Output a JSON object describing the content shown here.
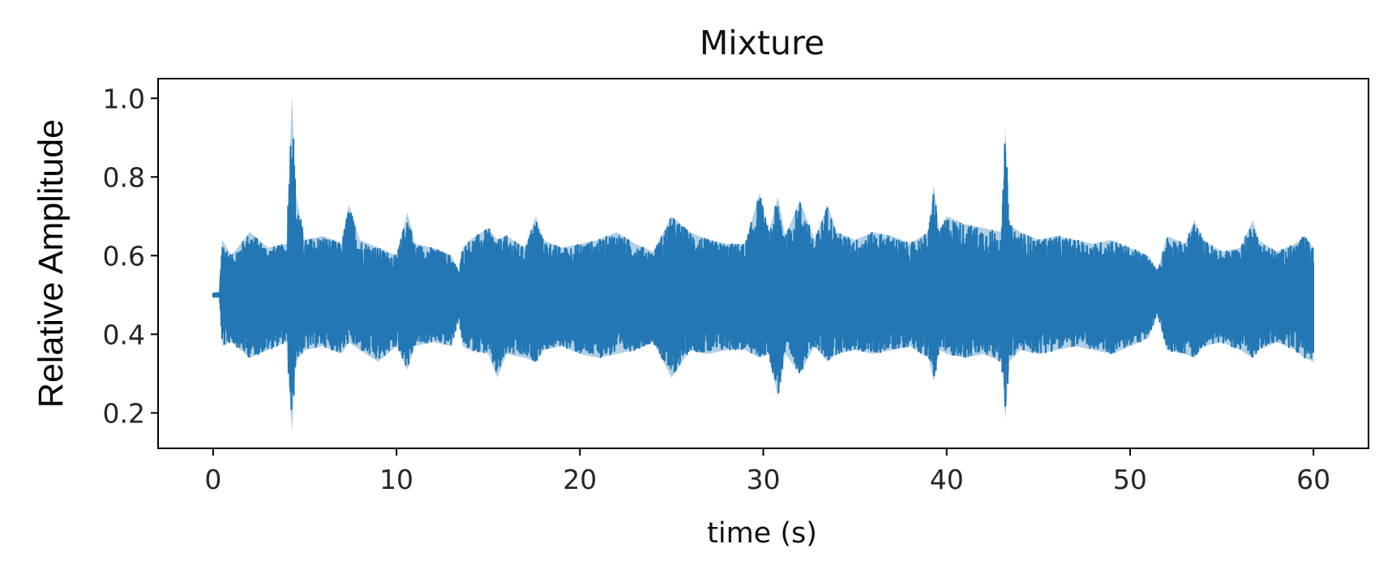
{
  "chart_data": {
    "type": "line",
    "title": "Mixture",
    "xlabel": "time (s)",
    "ylabel": "Relative Amplitude",
    "xlim": [
      -3,
      63
    ],
    "ylim": [
      0.11,
      1.05
    ],
    "x_ticks": [
      0,
      10,
      20,
      30,
      40,
      50,
      60
    ],
    "x_tick_labels": [
      "0",
      "10",
      "20",
      "30",
      "40",
      "50",
      "60"
    ],
    "y_ticks": [
      0.2,
      0.4,
      0.6,
      0.8,
      1.0
    ],
    "y_tick_labels": [
      "0.2",
      "0.4",
      "0.6",
      "0.8",
      "1.0"
    ],
    "grid": false,
    "series": [
      {
        "color": "#2277b4",
        "time_range": [
          0,
          60
        ],
        "baseline": 0.5,
        "envelope": {
          "x": [
            0.0,
            0.35,
            0.5,
            1,
            2,
            3,
            4,
            4.3,
            4.5,
            5,
            6,
            7,
            7.4,
            8,
            9,
            10,
            10.6,
            11,
            12,
            13,
            13.4,
            13.6,
            14,
            15,
            15.5,
            16,
            17,
            17.6,
            18,
            19,
            20,
            21,
            22,
            23,
            24,
            25,
            26,
            27,
            28,
            29,
            29.8,
            30.3,
            30.8,
            31.2,
            32,
            32.8,
            33.5,
            34,
            35,
            36,
            37,
            38,
            39,
            39.3,
            39.6,
            40,
            41,
            42,
            43,
            43.2,
            43.4,
            44,
            45,
            46,
            47,
            48,
            49,
            50,
            51,
            51.5,
            52,
            53,
            53.5,
            54,
            55,
            56,
            56.7,
            57,
            58,
            59,
            59.5,
            60
          ],
          "upper": [
            0.505,
            0.505,
            0.64,
            0.6,
            0.66,
            0.62,
            0.63,
            1.01,
            0.76,
            0.64,
            0.65,
            0.63,
            0.73,
            0.64,
            0.62,
            0.6,
            0.71,
            0.63,
            0.62,
            0.6,
            0.56,
            0.62,
            0.64,
            0.67,
            0.64,
            0.65,
            0.62,
            0.7,
            0.64,
            0.62,
            0.63,
            0.64,
            0.66,
            0.63,
            0.61,
            0.7,
            0.66,
            0.64,
            0.63,
            0.63,
            0.76,
            0.66,
            0.75,
            0.65,
            0.74,
            0.64,
            0.73,
            0.66,
            0.64,
            0.66,
            0.65,
            0.63,
            0.66,
            0.78,
            0.66,
            0.7,
            0.68,
            0.67,
            0.66,
            0.93,
            0.68,
            0.66,
            0.64,
            0.65,
            0.64,
            0.63,
            0.64,
            0.62,
            0.6,
            0.56,
            0.65,
            0.63,
            0.69,
            0.64,
            0.61,
            0.62,
            0.69,
            0.64,
            0.61,
            0.63,
            0.65,
            0.62
          ],
          "lower": [
            0.495,
            0.495,
            0.37,
            0.38,
            0.34,
            0.36,
            0.38,
            0.15,
            0.33,
            0.36,
            0.37,
            0.35,
            0.38,
            0.36,
            0.33,
            0.37,
            0.31,
            0.37,
            0.38,
            0.37,
            0.44,
            0.37,
            0.36,
            0.35,
            0.29,
            0.35,
            0.34,
            0.33,
            0.36,
            0.37,
            0.35,
            0.34,
            0.35,
            0.36,
            0.38,
            0.29,
            0.36,
            0.35,
            0.36,
            0.36,
            0.34,
            0.35,
            0.24,
            0.35,
            0.3,
            0.37,
            0.33,
            0.35,
            0.36,
            0.35,
            0.36,
            0.37,
            0.34,
            0.28,
            0.36,
            0.35,
            0.34,
            0.35,
            0.33,
            0.18,
            0.33,
            0.36,
            0.35,
            0.36,
            0.37,
            0.36,
            0.35,
            0.37,
            0.39,
            0.45,
            0.36,
            0.35,
            0.34,
            0.37,
            0.38,
            0.36,
            0.34,
            0.36,
            0.38,
            0.36,
            0.34,
            0.33
          ]
        }
      }
    ]
  }
}
